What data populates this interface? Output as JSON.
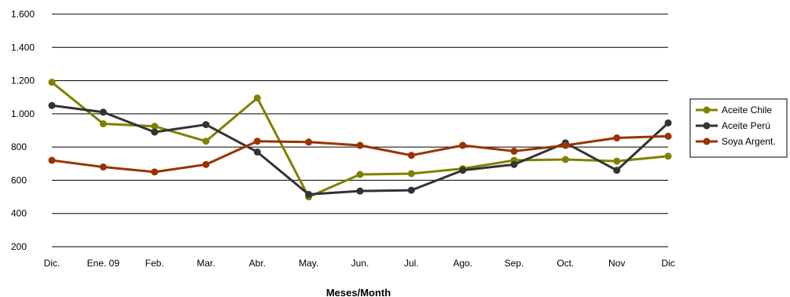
{
  "chart_data": {
    "type": "line",
    "title": "",
    "xlabel": "Meses/Month",
    "ylabel": "",
    "ylim": [
      200,
      1600
    ],
    "yticks": [
      200,
      400,
      600,
      800,
      1000,
      1200,
      1400,
      1600
    ],
    "ytick_labels": [
      "200",
      "400",
      "600",
      "800",
      "1.000",
      "1.200",
      "1.400",
      "1.600"
    ],
    "grid": "horizontal",
    "legend_position": "right",
    "categories": [
      "Dic.",
      "Ene. 09",
      "Feb.",
      "Mar.",
      "Abr.",
      "May.",
      "Jun.",
      "Jul.",
      "Ago.",
      "Sep.",
      "Oct.",
      "Nov",
      "Dic"
    ],
    "series": [
      {
        "name": "Aceite Chile",
        "color": "#808000",
        "values": [
          1190,
          940,
          925,
          835,
          1095,
          500,
          635,
          640,
          670,
          720,
          725,
          715,
          745
        ]
      },
      {
        "name": "Aceite Perú",
        "color": "#333333",
        "values": [
          1050,
          1010,
          890,
          935,
          770,
          515,
          535,
          540,
          660,
          695,
          825,
          660,
          945
        ]
      },
      {
        "name": "Soya Argent.",
        "color": "#993300",
        "values": [
          720,
          680,
          650,
          695,
          835,
          830,
          810,
          750,
          810,
          775,
          810,
          855,
          865
        ]
      }
    ]
  }
}
